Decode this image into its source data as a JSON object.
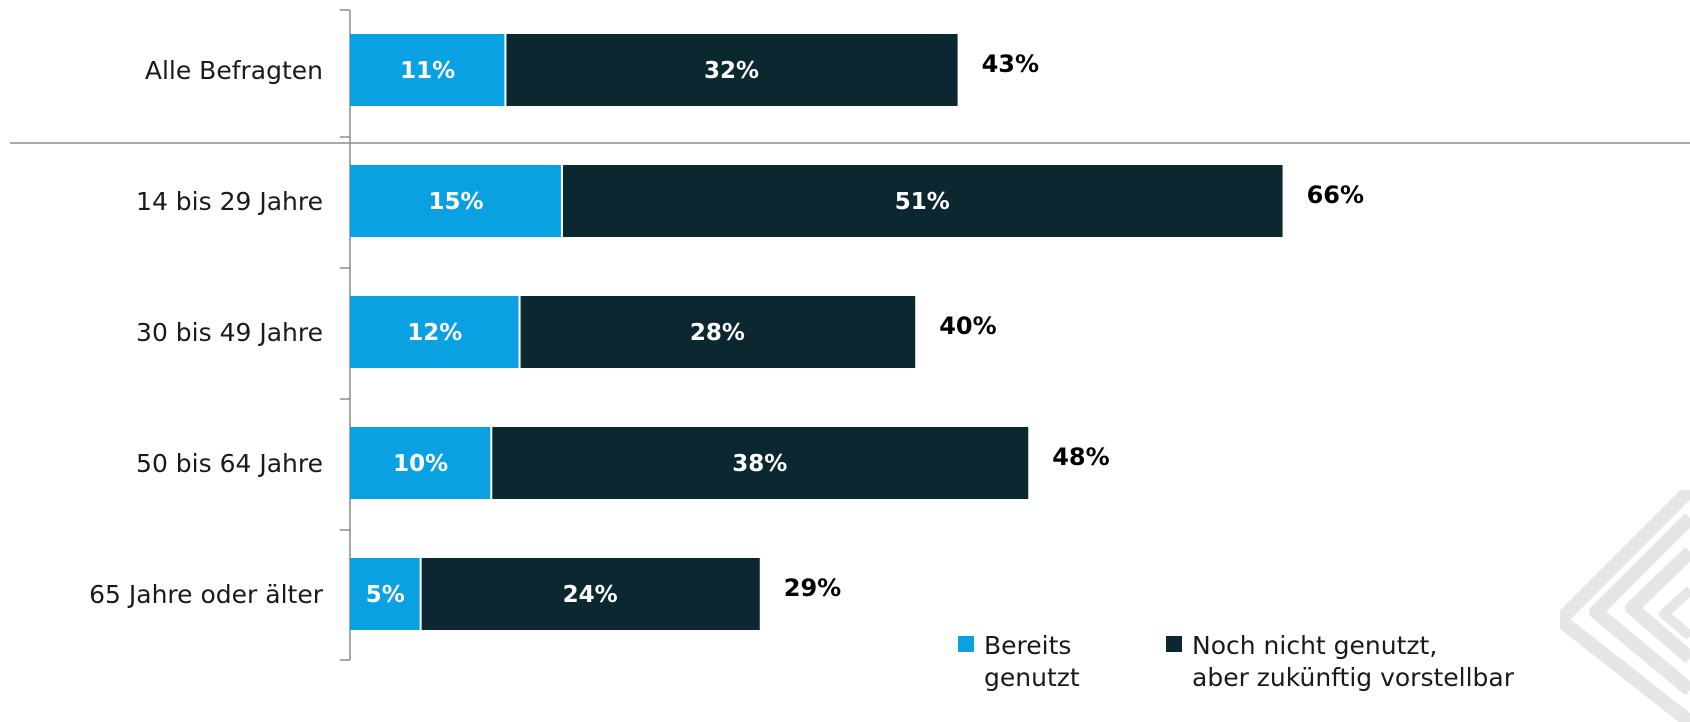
{
  "colors": {
    "used": "#0aa1e2",
    "not_used": "#0b2830",
    "axis": "#8c8c8c"
  },
  "legend": {
    "used_label_line1": "Bereits",
    "used_label_line2": "genutzt",
    "not_used_label_line1": "Noch nicht genutzt,",
    "not_used_label_line2": "aber zukünftig vorstellbar"
  },
  "chart_data": {
    "type": "bar",
    "orientation": "horizontal",
    "stacked": true,
    "categories": [
      "Alle Befragten",
      "14 bis 29 Jahre",
      "30 bis 49 Jahre",
      "50 bis 64 Jahre",
      "65 Jahre oder älter"
    ],
    "series": [
      {
        "name": "Bereits genutzt",
        "values": [
          11,
          15,
          12,
          10,
          5
        ],
        "labels": [
          "11%",
          "15%",
          "12%",
          "10%",
          "5%"
        ]
      },
      {
        "name": "Noch nicht genutzt, aber zukünftig vorstellbar",
        "values": [
          32,
          51,
          28,
          38,
          24
        ],
        "labels": [
          "32%",
          "51%",
          "28%",
          "38%",
          "24%"
        ]
      }
    ],
    "totals": [
      43,
      66,
      40,
      48,
      29
    ],
    "total_labels": [
      "43%",
      "66%",
      "40%",
      "48%",
      "29%"
    ],
    "xlim": [
      0,
      100
    ],
    "unit": "%",
    "grid": false,
    "legend_position": "bottom-right"
  }
}
